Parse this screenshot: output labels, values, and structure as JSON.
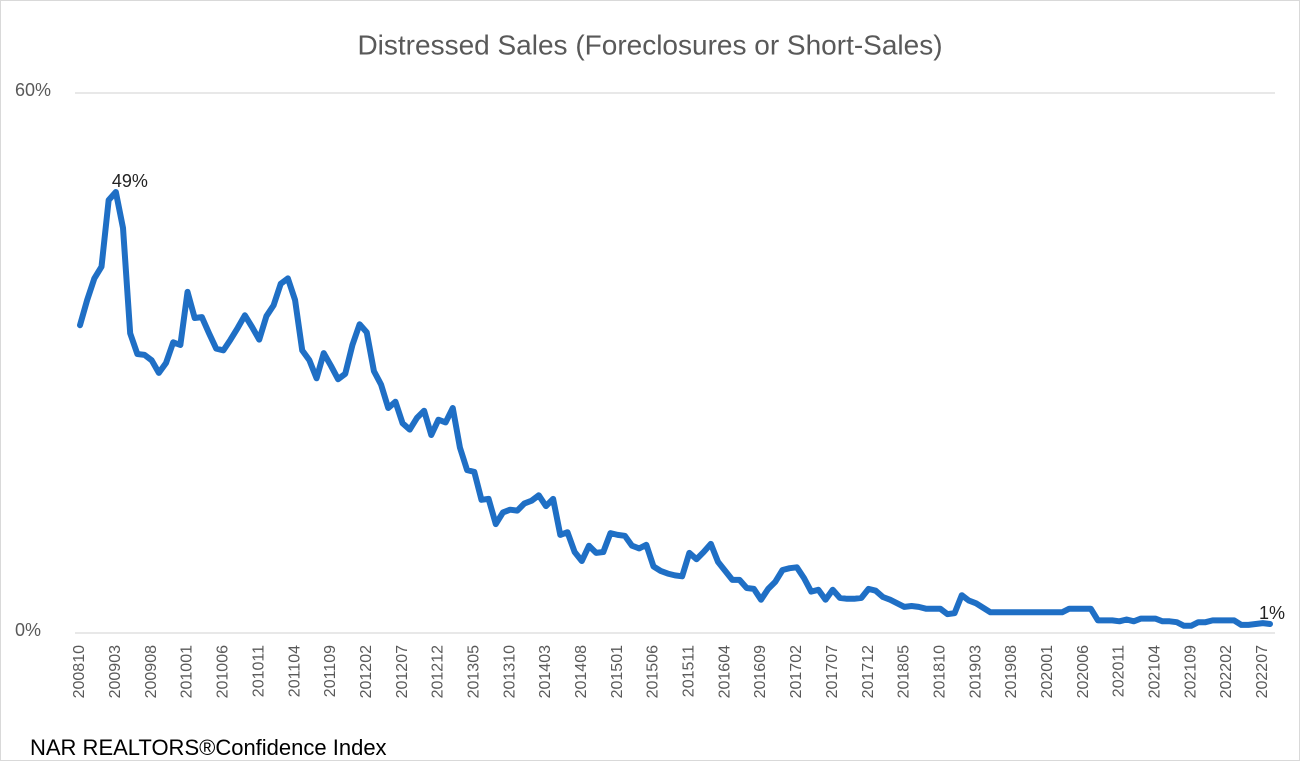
{
  "chart_data": {
    "type": "line",
    "title": "Distressed Sales (Foreclosures or Short-Sales)",
    "source": "NAR REALTORS®Confidence Index",
    "categories": [
      "200810",
      null,
      null,
      null,
      null,
      "200903",
      null,
      null,
      null,
      null,
      "200908",
      null,
      null,
      null,
      null,
      "201001",
      null,
      null,
      null,
      null,
      "201006",
      null,
      null,
      null,
      null,
      "201011",
      null,
      null,
      null,
      null,
      "201104",
      null,
      null,
      null,
      null,
      "201109",
      null,
      null,
      null,
      null,
      "201202",
      null,
      null,
      null,
      null,
      "201207",
      null,
      null,
      null,
      null,
      "201212",
      null,
      null,
      null,
      null,
      "201305",
      null,
      null,
      null,
      null,
      "201310",
      null,
      null,
      null,
      null,
      "201403",
      null,
      null,
      null,
      null,
      "201408",
      null,
      null,
      null,
      null,
      "201501",
      null,
      null,
      null,
      null,
      "201506",
      null,
      null,
      null,
      null,
      "201511",
      null,
      null,
      null,
      null,
      "201604",
      null,
      null,
      null,
      null,
      "201609",
      null,
      null,
      null,
      null,
      "201702",
      null,
      null,
      null,
      null,
      "201707",
      null,
      null,
      null,
      null,
      "201712",
      null,
      null,
      null,
      null,
      "201805",
      null,
      null,
      null,
      null,
      "201810",
      null,
      null,
      null,
      null,
      "201903",
      null,
      null,
      null,
      null,
      "201908",
      null,
      null,
      null,
      null,
      "202001",
      null,
      null,
      null,
      null,
      "202006",
      null,
      null,
      null,
      null,
      "202011",
      null,
      null,
      null,
      null,
      "202104",
      null,
      null,
      null,
      null,
      "202109",
      null,
      null,
      null,
      null,
      "202202",
      null,
      null,
      null,
      null,
      "202207",
      null
    ],
    "values": [
      34.2,
      37,
      39.4,
      40.7,
      48.1,
      49,
      45,
      33.3,
      31,
      30.9,
      30.3,
      28.9,
      30,
      32.3,
      32,
      37.9,
      35,
      35.1,
      33.3,
      31.6,
      31.4,
      32.6,
      33.9,
      35.3,
      34,
      32.6,
      35.2,
      36.4,
      38.8,
      39.4,
      37,
      31.4,
      30.3,
      28.3,
      31.1,
      29.7,
      28.2,
      28.8,
      32,
      34.3,
      33.4,
      29.1,
      27.6,
      25,
      25.7,
      23.3,
      22.6,
      23.9,
      24.7,
      22,
      23.7,
      23.4,
      25,
      20.6,
      18.1,
      17.9,
      14.8,
      14.9,
      12.1,
      13.4,
      13.7,
      13.6,
      14.4,
      14.7,
      15.3,
      14.1,
      14.9,
      10.9,
      11.2,
      9,
      8,
      9.7,
      8.9,
      9,
      11.1,
      10.9,
      10.8,
      9.7,
      9.4,
      9.8,
      7.4,
      6.9,
      6.6,
      6.4,
      6.3,
      8.9,
      8.2,
      9,
      9.9,
      7.9,
      6.9,
      5.9,
      5.9,
      5,
      4.9,
      3.7,
      4.9,
      5.7,
      7,
      7.2,
      7.3,
      6.1,
      4.6,
      4.8,
      3.7,
      4.8,
      3.9,
      3.8,
      3.8,
      3.9,
      4.9,
      4.7,
      4,
      3.7,
      3.3,
      2.9,
      3,
      2.9,
      2.7,
      2.7,
      2.7,
      2.1,
      2.2,
      4.2,
      3.6,
      3.3,
      2.8,
      2.3,
      2.3,
      2.3,
      2.3,
      2.3,
      2.3,
      2.3,
      2.3,
      2.3,
      2.3,
      2.3,
      2.7,
      2.7,
      2.7,
      2.7,
      1.4,
      1.4,
      1.4,
      1.3,
      1.5,
      1.3,
      1.6,
      1.6,
      1.6,
      1.3,
      1.3,
      1.2,
      0.8,
      0.8,
      1.2,
      1.2,
      1.4,
      1.4,
      1.4,
      1.4,
      0.9,
      0.9,
      1.0,
      1.1,
      1
    ],
    "value_labels": [
      null,
      null,
      null,
      null,
      null,
      "49%",
      null,
      null,
      null,
      null,
      null,
      null,
      null,
      null,
      null,
      null,
      null,
      null,
      null,
      null,
      null,
      null,
      null,
      null,
      null,
      null,
      null,
      null,
      null,
      null,
      null,
      null,
      null,
      null,
      null,
      null,
      null,
      null,
      null,
      null,
      null,
      null,
      null,
      null,
      null,
      null,
      null,
      null,
      null,
      null,
      null,
      null,
      null,
      null,
      null,
      null,
      null,
      null,
      null,
      null,
      null,
      null,
      null,
      null,
      null,
      null,
      null,
      null,
      null,
      null,
      null,
      null,
      null,
      null,
      null,
      null,
      null,
      null,
      null,
      null,
      null,
      null,
      null,
      null,
      null,
      null,
      null,
      null,
      null,
      null,
      null,
      null,
      null,
      null,
      null,
      null,
      null,
      null,
      null,
      null,
      null,
      null,
      null,
      null,
      null,
      null,
      null,
      null,
      null,
      null,
      null,
      null,
      null,
      null,
      null,
      null,
      null,
      null,
      null,
      null,
      null,
      null,
      null,
      null,
      null,
      null,
      null,
      null,
      null,
      null,
      null,
      null,
      null,
      null,
      null,
      null,
      null,
      null,
      null,
      null,
      null,
      null,
      null,
      null,
      null,
      null,
      null,
      null,
      null,
      null,
      null,
      null,
      null,
      null,
      null,
      null,
      null,
      null,
      null,
      null,
      null,
      null,
      null,
      null,
      null,
      null,
      "1%"
    ],
    "color": "#1f6fc5",
    "ylim": [
      0,
      60
    ],
    "yticks": [
      {
        "value": 0,
        "label": "0%"
      },
      {
        "value": 60,
        "label": "60%"
      }
    ],
    "grid": true
  }
}
